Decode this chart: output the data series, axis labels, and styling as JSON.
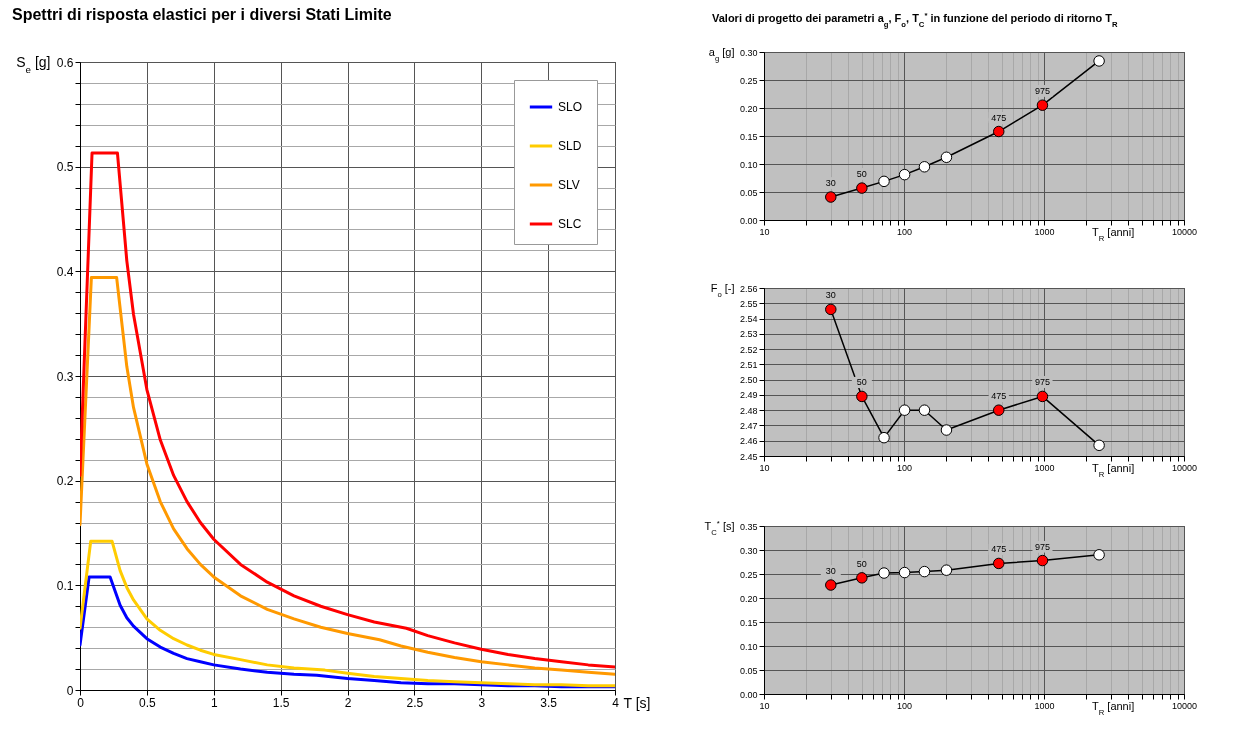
{
  "chart_data": [
    {
      "type": "line",
      "title": "Spettri di risposta elastici per i diversi Stati Limite",
      "xlabel": "T  [s]",
      "ylabel": "S$_{e}$ [g]",
      "xlim": [
        0,
        4
      ],
      "xticks": [
        0,
        0.5,
        1,
        1.5,
        2,
        2.5,
        3,
        3.5,
        4
      ],
      "ylim": [
        0,
        0.6
      ],
      "yticks": [
        0,
        {
          "value": 0.02,
          "label": null
        },
        {
          "value": 0.04,
          "label": null
        },
        {
          "value": 0.06,
          "label": null
        },
        {
          "value": 0.08,
          "label": null
        },
        0.1,
        {
          "value": 0.12,
          "label": null
        },
        {
          "value": 0.14,
          "label": null
        },
        {
          "value": 0.16,
          "label": null
        },
        {
          "value": 0.18,
          "label": null
        },
        0.2,
        {
          "value": 0.22,
          "label": null
        },
        {
          "value": 0.24,
          "label": null
        },
        {
          "value": 0.26,
          "label": null
        },
        {
          "value": 0.28,
          "label": null
        },
        0.3,
        {
          "value": 0.32,
          "label": null
        },
        {
          "value": 0.34,
          "label": null
        },
        {
          "value": 0.36,
          "label": null
        },
        {
          "value": 0.38,
          "label": null
        },
        0.4,
        {
          "value": 0.42,
          "label": null
        },
        {
          "value": 0.44,
          "label": null
        },
        {
          "value": 0.46,
          "label": null
        },
        {
          "value": 0.48,
          "label": null
        },
        0.5,
        {
          "value": 0.52,
          "label": null
        },
        {
          "value": 0.54,
          "label": null
        },
        {
          "value": 0.56,
          "label": null
        },
        {
          "value": 0.58,
          "label": null
        },
        0.6
      ],
      "grid": true,
      "legend": "top right",
      "line_style": "solid",
      "series": [
        {
          "name": "SLO",
          "color": "#0000ff",
          "x": [
            0,
            0.068,
            0.225,
            0.3,
            0.35,
            0.4,
            0.5,
            0.6,
            0.7,
            0.8,
            0.9,
            1.0,
            1.2,
            1.4,
            1.6,
            1.77,
            2.0,
            2.2,
            2.4,
            2.6,
            2.8,
            3.0,
            3.2,
            3.4,
            3.6,
            3.8,
            4.0
          ],
          "values": [
            0.043,
            0.108,
            0.108,
            0.081,
            0.069,
            0.061,
            0.049,
            0.041,
            0.035,
            0.03,
            0.027,
            0.024,
            0.02,
            0.017,
            0.015,
            0.014,
            0.011,
            0.009,
            0.007,
            0.006,
            0.006,
            0.005,
            0.004,
            0.004,
            0.003,
            0.003,
            0.003
          ]
        },
        {
          "name": "SLD",
          "color": "#ffcc00",
          "x": [
            0,
            0.08,
            0.24,
            0.3,
            0.35,
            0.4,
            0.5,
            0.6,
            0.7,
            0.8,
            0.9,
            1.0,
            1.2,
            1.4,
            1.6,
            1.83,
            2.0,
            2.2,
            2.4,
            2.6,
            2.8,
            3.0,
            3.2,
            3.4,
            3.6,
            3.8,
            4.0
          ],
          "values": [
            0.059,
            0.142,
            0.142,
            0.114,
            0.098,
            0.086,
            0.068,
            0.057,
            0.049,
            0.043,
            0.038,
            0.034,
            0.029,
            0.024,
            0.021,
            0.019,
            0.016,
            0.013,
            0.011,
            0.009,
            0.008,
            0.007,
            0.006,
            0.005,
            0.005,
            0.004,
            0.004
          ]
        },
        {
          "name": "SLV",
          "color": "#ff9900",
          "x": [
            0,
            0.085,
            0.274,
            0.35,
            0.4,
            0.5,
            0.6,
            0.7,
            0.8,
            0.9,
            1.0,
            1.2,
            1.4,
            1.6,
            1.8,
            2.0,
            2.24,
            2.4,
            2.6,
            2.8,
            3.0,
            3.2,
            3.4,
            3.6,
            3.8,
            4.0
          ],
          "values": [
            0.158,
            0.394,
            0.394,
            0.309,
            0.27,
            0.216,
            0.18,
            0.154,
            0.135,
            0.12,
            0.108,
            0.09,
            0.077,
            0.068,
            0.06,
            0.054,
            0.048,
            0.042,
            0.036,
            0.031,
            0.027,
            0.024,
            0.021,
            0.019,
            0.017,
            0.015
          ]
        },
        {
          "name": "SLC",
          "color": "#ff0000",
          "x": [
            0,
            0.09,
            0.28,
            0.35,
            0.4,
            0.5,
            0.6,
            0.7,
            0.8,
            0.9,
            1.0,
            1.2,
            1.4,
            1.6,
            1.8,
            2.0,
            2.2,
            2.44,
            2.6,
            2.8,
            3.0,
            3.2,
            3.4,
            3.6,
            3.8,
            4.0
          ],
          "values": [
            0.205,
            0.513,
            0.513,
            0.41,
            0.359,
            0.287,
            0.239,
            0.205,
            0.18,
            0.16,
            0.144,
            0.12,
            0.103,
            0.09,
            0.08,
            0.072,
            0.065,
            0.059,
            0.052,
            0.045,
            0.039,
            0.034,
            0.03,
            0.027,
            0.024,
            0.022
          ]
        }
      ]
    },
    {
      "type": "line",
      "title": "Valori di progetto dei parametri a$_{g}$, F$_{o}$, T$_{C}$$^{*}$ in funzione del periodo di ritorno T$_{R}$",
      "xlabel": "T$_{R}$ [anni]",
      "ylabel": "a$_{g}$ [g]",
      "log": "x",
      "xlim": [
        10,
        10000
      ],
      "xticks": [
        10,
        {
          "value": 20,
          "label": null
        },
        {
          "value": 30,
          "label": null
        },
        {
          "value": 40,
          "label": null
        },
        {
          "value": 50,
          "label": null
        },
        {
          "value": 60,
          "label": null
        },
        {
          "value": 70,
          "label": null
        },
        {
          "value": 80,
          "label": null
        },
        {
          "value": 90,
          "label": null
        },
        100,
        {
          "value": 200,
          "label": null
        },
        {
          "value": 300,
          "label": null
        },
        {
          "value": 400,
          "label": null
        },
        {
          "value": 500,
          "label": null
        },
        {
          "value": 600,
          "label": null
        },
        {
          "value": 700,
          "label": null
        },
        {
          "value": 800,
          "label": null
        },
        {
          "value": 900,
          "label": null
        },
        1000,
        {
          "value": 2000,
          "label": null
        },
        {
          "value": 3000,
          "label": null
        },
        {
          "value": 4000,
          "label": null
        },
        {
          "value": 5000,
          "label": null
        },
        {
          "value": 6000,
          "label": null
        },
        {
          "value": 7000,
          "label": null
        },
        {
          "value": 8000,
          "label": null
        },
        {
          "value": 9000,
          "label": null
        },
        10000
      ],
      "ylim": [
        0,
        0.3
      ],
      "yticks": [
        {
          "value": 0,
          "label": "0.00"
        },
        0.05,
        {
          "value": 0.1,
          "label": "0.10"
        },
        0.15,
        {
          "value": 0.2,
          "label": "0.20"
        },
        0.25,
        {
          "value": 0.3,
          "label": "0.30"
        }
      ],
      "grid": true,
      "marker": "circle",
      "series": [
        {
          "color": "#000000",
          "x": [
            30,
            50,
            72,
            101,
            140,
            201,
            475,
            975,
            2475
          ],
          "values": [
            0.041,
            0.057,
            0.069,
            0.081,
            0.095,
            0.112,
            0.158,
            0.205,
            0.284
          ],
          "colors": [
            "#ff0000",
            "#ff0000",
            "#ffffff",
            "#ffffff",
            "#ffffff",
            "#ffffff",
            "#ff0000",
            "#ff0000",
            "#ffffff"
          ]
        }
      ],
      "annotations": [
        {
          "text": "30",
          "x": 30,
          "y": 0.041
        },
        {
          "text": "50",
          "x": 50,
          "y": 0.057
        },
        {
          "text": "475",
          "x": 475,
          "y": 0.158
        },
        {
          "text": "975",
          "x": 975,
          "y": 0.205
        }
      ]
    },
    {
      "type": "line",
      "xlabel": "T$_{R}$ [anni]",
      "ylabel": "F$_{o}$ [-]",
      "log": "x",
      "xlim": [
        10,
        10000
      ],
      "xticks": [
        10,
        {
          "value": 20,
          "label": null
        },
        {
          "value": 30,
          "label": null
        },
        {
          "value": 40,
          "label": null
        },
        {
          "value": 50,
          "label": null
        },
        {
          "value": 60,
          "label": null
        },
        {
          "value": 70,
          "label": null
        },
        {
          "value": 80,
          "label": null
        },
        {
          "value": 90,
          "label": null
        },
        100,
        {
          "value": 200,
          "label": null
        },
        {
          "value": 300,
          "label": null
        },
        {
          "value": 400,
          "label": null
        },
        {
          "value": 500,
          "label": null
        },
        {
          "value": 600,
          "label": null
        },
        {
          "value": 700,
          "label": null
        },
        {
          "value": 800,
          "label": null
        },
        {
          "value": 900,
          "label": null
        },
        1000,
        {
          "value": 2000,
          "label": null
        },
        {
          "value": 3000,
          "label": null
        },
        {
          "value": 4000,
          "label": null
        },
        {
          "value": 5000,
          "label": null
        },
        {
          "value": 6000,
          "label": null
        },
        {
          "value": 7000,
          "label": null
        },
        {
          "value": 8000,
          "label": null
        },
        {
          "value": 9000,
          "label": null
        },
        10000
      ],
      "ylim": [
        2.45,
        2.56
      ],
      "yticks": [
        2.45,
        2.46,
        2.47,
        2.48,
        2.49,
        {
          "value": 2.5,
          "label": "2.50"
        },
        2.51,
        2.52,
        2.53,
        2.54,
        2.55,
        2.56
      ],
      "grid": true,
      "marker": "circle",
      "series": [
        {
          "color": "#000000",
          "x": [
            30,
            50,
            72,
            101,
            140,
            201,
            475,
            975,
            2475
          ],
          "values": [
            2.546,
            2.489,
            2.462,
            2.48,
            2.48,
            2.467,
            2.48,
            2.489,
            2.457
          ],
          "colors": [
            "#ff0000",
            "#ff0000",
            "#ffffff",
            "#ffffff",
            "#ffffff",
            "#ffffff",
            "#ff0000",
            "#ff0000",
            "#ffffff"
          ]
        }
      ],
      "annotations": [
        {
          "text": "30",
          "x": 30,
          "y": 2.546
        },
        {
          "text": "50",
          "x": 50,
          "y": 2.489
        },
        {
          "text": "475",
          "x": 475,
          "y": 2.48
        },
        {
          "text": "975",
          "x": 975,
          "y": 2.489
        }
      ]
    },
    {
      "type": "line",
      "xlabel": "T$_{R}$ [anni]",
      "ylabel": "T$_{C}$$^{*}$ [s]",
      "log": "x",
      "xlim": [
        10,
        10000
      ],
      "xticks": [
        10,
        {
          "value": 20,
          "label": null
        },
        {
          "value": 30,
          "label": null
        },
        {
          "value": 40,
          "label": null
        },
        {
          "value": 50,
          "label": null
        },
        {
          "value": 60,
          "label": null
        },
        {
          "value": 70,
          "label": null
        },
        {
          "value": 80,
          "label": null
        },
        {
          "value": 90,
          "label": null
        },
        100,
        {
          "value": 200,
          "label": null
        },
        {
          "value": 300,
          "label": null
        },
        {
          "value": 400,
          "label": null
        },
        {
          "value": 500,
          "label": null
        },
        {
          "value": 600,
          "label": null
        },
        {
          "value": 700,
          "label": null
        },
        {
          "value": 800,
          "label": null
        },
        {
          "value": 900,
          "label": null
        },
        1000,
        {
          "value": 2000,
          "label": null
        },
        {
          "value": 3000,
          "label": null
        },
        {
          "value": 4000,
          "label": null
        },
        {
          "value": 5000,
          "label": null
        },
        {
          "value": 6000,
          "label": null
        },
        {
          "value": 7000,
          "label": null
        },
        {
          "value": 8000,
          "label": null
        },
        {
          "value": 9000,
          "label": null
        },
        10000
      ],
      "ylim": [
        0,
        0.35
      ],
      "yticks": [
        {
          "value": 0,
          "label": "0.00"
        },
        0.05,
        {
          "value": 0.1,
          "label": "0.10"
        },
        0.15,
        {
          "value": 0.2,
          "label": "0.20"
        },
        0.25,
        {
          "value": 0.3,
          "label": "0.30"
        },
        0.35
      ],
      "grid": true,
      "marker": "circle",
      "series": [
        {
          "color": "#000000",
          "x": [
            30,
            50,
            72,
            101,
            140,
            201,
            475,
            975,
            2475
          ],
          "values": [
            0.227,
            0.242,
            0.252,
            0.253,
            0.255,
            0.258,
            0.272,
            0.278,
            0.29
          ],
          "colors": [
            "#ff0000",
            "#ff0000",
            "#ffffff",
            "#ffffff",
            "#ffffff",
            "#ffffff",
            "#ff0000",
            "#ff0000",
            "#ffffff"
          ]
        }
      ],
      "annotations": [
        {
          "text": "30",
          "x": 30,
          "y": 0.227
        },
        {
          "text": "50",
          "x": 50,
          "y": 0.242
        },
        {
          "text": "475",
          "x": 475,
          "y": 0.272
        },
        {
          "text": "975",
          "x": 975,
          "y": 0.278
        }
      ]
    }
  ]
}
